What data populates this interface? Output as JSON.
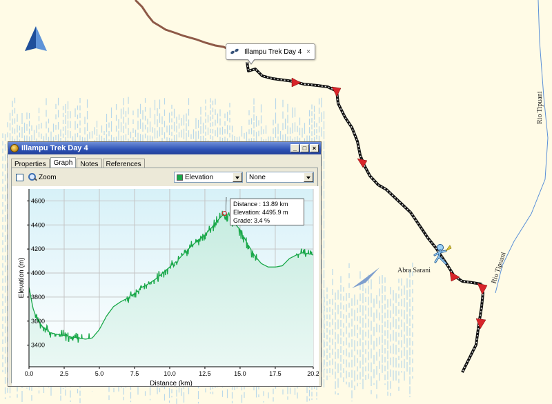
{
  "popup": {
    "title": "Illampu Trek Day 4",
    "close": "×"
  },
  "map": {
    "labels": {
      "pass": "Abra Sarani",
      "river1": "Rio Tipuani",
      "river2": "Rio Tipuani"
    }
  },
  "window": {
    "title": "Illampu Trek Day 4",
    "buttons": {
      "minimize": "_",
      "maximize": "□",
      "close": "×"
    },
    "tabs": [
      {
        "label": "Properties"
      },
      {
        "label": "Graph",
        "active": true
      },
      {
        "label": "Notes"
      },
      {
        "label": "References"
      }
    ]
  },
  "toolbar": {
    "zoom_label": "Zoom",
    "select1": "Elevation",
    "select1_color": "#1aa84a",
    "select2": "None"
  },
  "tooltip": {
    "line1": "Distance : 13.89 km",
    "line2": "Elevation: 4495.9 m",
    "line3": "Grade: 3.4 %"
  },
  "chart_data": {
    "type": "area",
    "xlabel": "Distance  (km)",
    "ylabel": "Elevation (m)",
    "xlim": [
      0,
      20.2
    ],
    "ylim": [
      3220,
      4700
    ],
    "x_ticks": [
      0,
      2.5,
      5.0,
      7.5,
      10.0,
      12.5,
      15.0,
      17.5,
      20.2
    ],
    "x_tick_labels": [
      "0.0",
      "2.5",
      "5.0",
      "7.5",
      "10.0",
      "12.5",
      "15.0",
      "17.5",
      "20.2"
    ],
    "y_ticks": [
      3400,
      3600,
      3800,
      4000,
      4200,
      4400,
      4600
    ],
    "y_tick_labels": [
      "3400",
      "3600",
      "3800",
      "4000",
      "4200",
      "4400",
      "4600"
    ],
    "grid": true,
    "line_color": "#1aa84a",
    "series": [
      {
        "x": [
          0,
          0.3,
          0.6,
          1.0,
          1.5,
          2.0,
          2.5,
          3.0,
          3.5,
          4.0,
          4.5,
          5.0,
          5.5,
          6.0,
          6.5,
          7.0,
          7.5,
          8.0,
          8.5,
          9.0,
          9.5,
          10.0,
          10.5,
          11.0,
          11.5,
          12.0,
          12.5,
          13.0,
          13.5,
          13.89,
          14.2,
          14.5,
          15.0,
          15.5,
          16.0,
          16.5,
          17.0,
          17.5,
          18.0,
          18.5,
          19.0,
          19.5,
          20.2
        ],
        "y": [
          3880,
          3700,
          3610,
          3550,
          3505,
          3490,
          3480,
          3470,
          3460,
          3450,
          3460,
          3530,
          3640,
          3720,
          3760,
          3790,
          3830,
          3880,
          3910,
          3950,
          4000,
          4050,
          4100,
          4160,
          4220,
          4270,
          4320,
          4380,
          4450,
          4495,
          4490,
          4430,
          4360,
          4250,
          4150,
          4080,
          4050,
          4050,
          4060,
          4120,
          4150,
          4170,
          4150
        ]
      }
    ],
    "marker": {
      "x": 13.89,
      "y": 4495.9
    }
  }
}
